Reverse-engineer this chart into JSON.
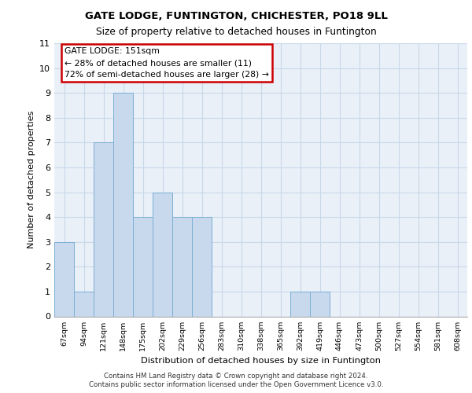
{
  "title1": "GATE LODGE, FUNTINGTON, CHICHESTER, PO18 9LL",
  "title2": "Size of property relative to detached houses in Funtington",
  "xlabel": "Distribution of detached houses by size in Funtington",
  "ylabel": "Number of detached properties",
  "categories": [
    "67sqm",
    "94sqm",
    "121sqm",
    "148sqm",
    "175sqm",
    "202sqm",
    "229sqm",
    "256sqm",
    "283sqm",
    "310sqm",
    "338sqm",
    "365sqm",
    "392sqm",
    "419sqm",
    "446sqm",
    "473sqm",
    "500sqm",
    "527sqm",
    "554sqm",
    "581sqm",
    "608sqm"
  ],
  "values": [
    3,
    1,
    7,
    9,
    4,
    5,
    4,
    4,
    0,
    0,
    0,
    0,
    1,
    1,
    0,
    0,
    0,
    0,
    0,
    0,
    0
  ],
  "bar_color": "#c9d9ed",
  "bar_edge_color": "#7bafd4",
  "annotation_box_text": "GATE LODGE: 151sqm\n← 28% of detached houses are smaller (11)\n72% of semi-detached houses are larger (28) →",
  "annotation_box_color": "#ffffff",
  "annotation_box_edge_color": "#cc0000",
  "ylim": [
    0,
    11
  ],
  "yticks": [
    0,
    1,
    2,
    3,
    4,
    5,
    6,
    7,
    8,
    9,
    10,
    11
  ],
  "grid_color": "#c8d8e8",
  "background_color": "#eaf0f8",
  "footer_line1": "Contains HM Land Registry data © Crown copyright and database right 2024.",
  "footer_line2": "Contains public sector information licensed under the Open Government Licence v3.0."
}
